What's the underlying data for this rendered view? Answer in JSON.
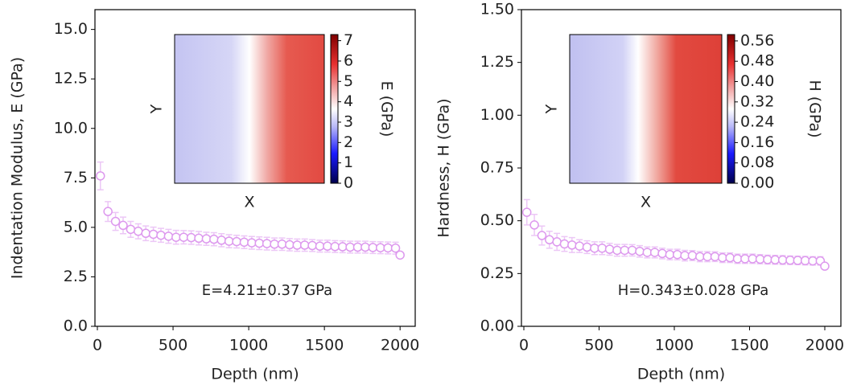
{
  "chart_data": [
    {
      "type": "scatter",
      "xlabel": "Depth (nm)",
      "ylabel": "Indentation Modulus, E (GPa)",
      "annotation": "E=4.21±0.37 GPa",
      "x": [
        20,
        70,
        120,
        170,
        220,
        270,
        320,
        370,
        420,
        470,
        520,
        570,
        620,
        670,
        720,
        770,
        820,
        870,
        920,
        970,
        1020,
        1070,
        1120,
        1170,
        1220,
        1270,
        1320,
        1370,
        1420,
        1470,
        1520,
        1570,
        1620,
        1670,
        1720,
        1770,
        1820,
        1870,
        1920,
        1970,
        2000
      ],
      "series": [
        {
          "color": "#dd99ee",
          "values": [
            7.6,
            5.8,
            5.3,
            5.1,
            4.9,
            4.8,
            4.7,
            4.65,
            4.6,
            4.55,
            4.5,
            4.5,
            4.48,
            4.45,
            4.42,
            4.4,
            4.35,
            4.3,
            4.28,
            4.25,
            4.22,
            4.2,
            4.18,
            4.15,
            4.15,
            4.12,
            4.1,
            4.1,
            4.08,
            4.05,
            4.05,
            4.03,
            4.02,
            4.0,
            4.0,
            4.0,
            3.98,
            3.97,
            3.96,
            3.95,
            3.6
          ],
          "errors": [
            0.7,
            0.5,
            0.45,
            0.42,
            0.4,
            0.38,
            0.37,
            0.36,
            0.35,
            0.35,
            0.35,
            0.34,
            0.34,
            0.34,
            0.33,
            0.33,
            0.33,
            0.33,
            0.32,
            0.32,
            0.32,
            0.32,
            0.32,
            0.31,
            0.31,
            0.31,
            0.31,
            0.31,
            0.3,
            0.3,
            0.3,
            0.3,
            0.3,
            0.3,
            0.3,
            0.3,
            0.3,
            0.3,
            0.3,
            0.3,
            0.1
          ]
        }
      ],
      "xlim": [
        -16,
        2100
      ],
      "ylim": [
        0,
        16
      ],
      "xticks": [
        0,
        500,
        1000,
        1500,
        2000
      ],
      "yticks": [
        {
          "value": 0,
          "label": "0.0"
        },
        2.5,
        {
          "value": 5,
          "label": "5.0"
        },
        7.5,
        {
          "value": 10,
          "label": "10.0"
        },
        12.5,
        {
          "value": 15,
          "label": "15.0"
        }
      ],
      "inset": {
        "xlabel": "X",
        "ylabel": "Y",
        "colorbar_label": "E (GPa)",
        "clim": [
          0,
          7.3
        ],
        "cticks": [
          0,
          1,
          2,
          3,
          4,
          5,
          6,
          7
        ]
      }
    },
    {
      "type": "scatter",
      "xlabel": "Depth (nm)",
      "ylabel": "Hardness, H (GPa)",
      "annotation": "H=0.343±0.028 GPa",
      "x": [
        20,
        70,
        120,
        170,
        220,
        270,
        320,
        370,
        420,
        470,
        520,
        570,
        620,
        670,
        720,
        770,
        820,
        870,
        920,
        970,
        1020,
        1070,
        1120,
        1170,
        1220,
        1270,
        1320,
        1370,
        1420,
        1470,
        1520,
        1570,
        1620,
        1670,
        1720,
        1770,
        1820,
        1870,
        1920,
        1970,
        2000
      ],
      "series": [
        {
          "color": "#dd99ee",
          "values": [
            0.54,
            0.48,
            0.43,
            0.41,
            0.4,
            0.39,
            0.385,
            0.38,
            0.375,
            0.37,
            0.37,
            0.365,
            0.36,
            0.36,
            0.36,
            0.355,
            0.35,
            0.35,
            0.345,
            0.34,
            0.34,
            0.335,
            0.335,
            0.33,
            0.33,
            0.33,
            0.325,
            0.325,
            0.32,
            0.32,
            0.32,
            0.318,
            0.316,
            0.315,
            0.314,
            0.313,
            0.312,
            0.311,
            0.31,
            0.31,
            0.285
          ],
          "errors": [
            0.06,
            0.05,
            0.045,
            0.04,
            0.04,
            0.035,
            0.035,
            0.03,
            0.03,
            0.03,
            0.03,
            0.028,
            0.028,
            0.028,
            0.027,
            0.027,
            0.026,
            0.026,
            0.025,
            0.025,
            0.025,
            0.025,
            0.024,
            0.024,
            0.024,
            0.023,
            0.023,
            0.023,
            0.022,
            0.022,
            0.022,
            0.022,
            0.021,
            0.021,
            0.021,
            0.02,
            0.02,
            0.02,
            0.02,
            0.02,
            0.01
          ]
        }
      ],
      "xlim": [
        -16,
        2107
      ],
      "ylim": [
        0,
        1.5
      ],
      "xticks": [
        0,
        500,
        1000,
        1500,
        2000
      ],
      "yticks": [
        {
          "value": 0,
          "label": "0.00"
        },
        0.25,
        {
          "value": 0.5,
          "label": "0.50"
        },
        0.75,
        {
          "value": 1,
          "label": "1.00"
        },
        1.25,
        {
          "value": 1.5,
          "label": "1.50"
        }
      ],
      "inset": {
        "xlabel": "X",
        "ylabel": "Y",
        "colorbar_label": "H (GPa)",
        "clim": [
          0,
          0.585
        ],
        "cticks": [
          {
            "value": 0,
            "label": "0.00"
          },
          0.08,
          0.16,
          0.24,
          0.32,
          {
            "value": 0.4,
            "label": "0.40"
          },
          0.48,
          0.56
        ]
      }
    }
  ]
}
